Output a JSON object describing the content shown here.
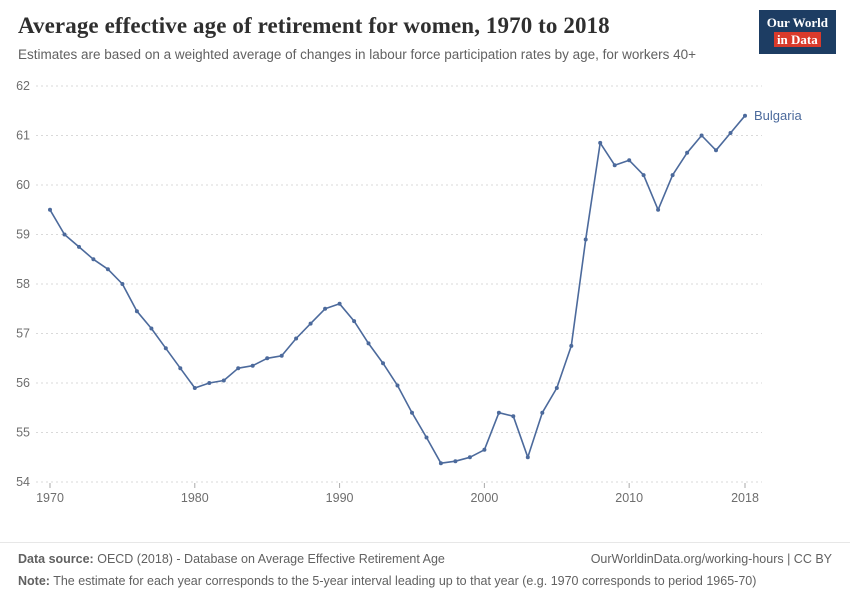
{
  "header": {
    "title": "Average effective age of retirement for women, 1970 to 2018",
    "subtitle": "Estimates are based on a weighted average of changes in labour force participation rates by age, for workers 40+",
    "logo": {
      "line1": "Our World",
      "line2": "in Data"
    }
  },
  "footer": {
    "source_label": "Data source:",
    "source_text": "OECD (2018) - Database on Average Effective Retirement Age",
    "credit": "OurWorldinData.org/working-hours | CC BY",
    "note_label": "Note:",
    "note_text": "The estimate for each year corresponds to the 5-year interval leading up to that year (e.g. 1970 corresponds to period 1965-70)"
  },
  "colors": {
    "series": "#4C6A9C",
    "logo_navy": "#1D3D63",
    "logo_red": "#D93A2B",
    "grid": "#d9d9d9",
    "axis_text": "#6e6e6e"
  },
  "chart_data": {
    "type": "line",
    "title": "Average effective age of retirement for women, 1970 to 2018",
    "xlabel": "",
    "ylabel": "",
    "xlim": [
      1970,
      2018
    ],
    "ylim": [
      54,
      62
    ],
    "x_ticks": [
      1970,
      1980,
      1990,
      2000,
      2010,
      2018
    ],
    "y_ticks": [
      54,
      55,
      56,
      57,
      58,
      59,
      60,
      61,
      62
    ],
    "grid": "horizontal-dashed",
    "legend_position": "end-of-line-label",
    "series": [
      {
        "name": "Bulgaria",
        "color": "#4C6A9C",
        "x": [
          1970,
          1971,
          1972,
          1973,
          1974,
          1975,
          1976,
          1977,
          1978,
          1979,
          1980,
          1981,
          1982,
          1983,
          1984,
          1985,
          1986,
          1987,
          1988,
          1989,
          1990,
          1991,
          1992,
          1993,
          1994,
          1995,
          1996,
          1997,
          1998,
          1999,
          2000,
          2001,
          2002,
          2003,
          2004,
          2005,
          2006,
          2007,
          2008,
          2009,
          2010,
          2011,
          2012,
          2013,
          2014,
          2015,
          2016,
          2017,
          2018
        ],
        "values": [
          59.5,
          59.0,
          58.75,
          58.5,
          58.3,
          58.0,
          57.45,
          57.1,
          56.7,
          56.3,
          55.9,
          56.0,
          56.05,
          56.3,
          56.35,
          56.5,
          56.55,
          56.9,
          57.2,
          57.5,
          57.6,
          57.25,
          56.8,
          56.4,
          55.95,
          55.4,
          54.9,
          54.38,
          54.42,
          54.5,
          54.65,
          55.4,
          55.33,
          54.5,
          55.4,
          55.9,
          56.75,
          58.9,
          60.85,
          60.4,
          60.5,
          60.2,
          59.5,
          60.2,
          60.65,
          61.0,
          60.7,
          61.05,
          61.4
        ]
      }
    ]
  }
}
